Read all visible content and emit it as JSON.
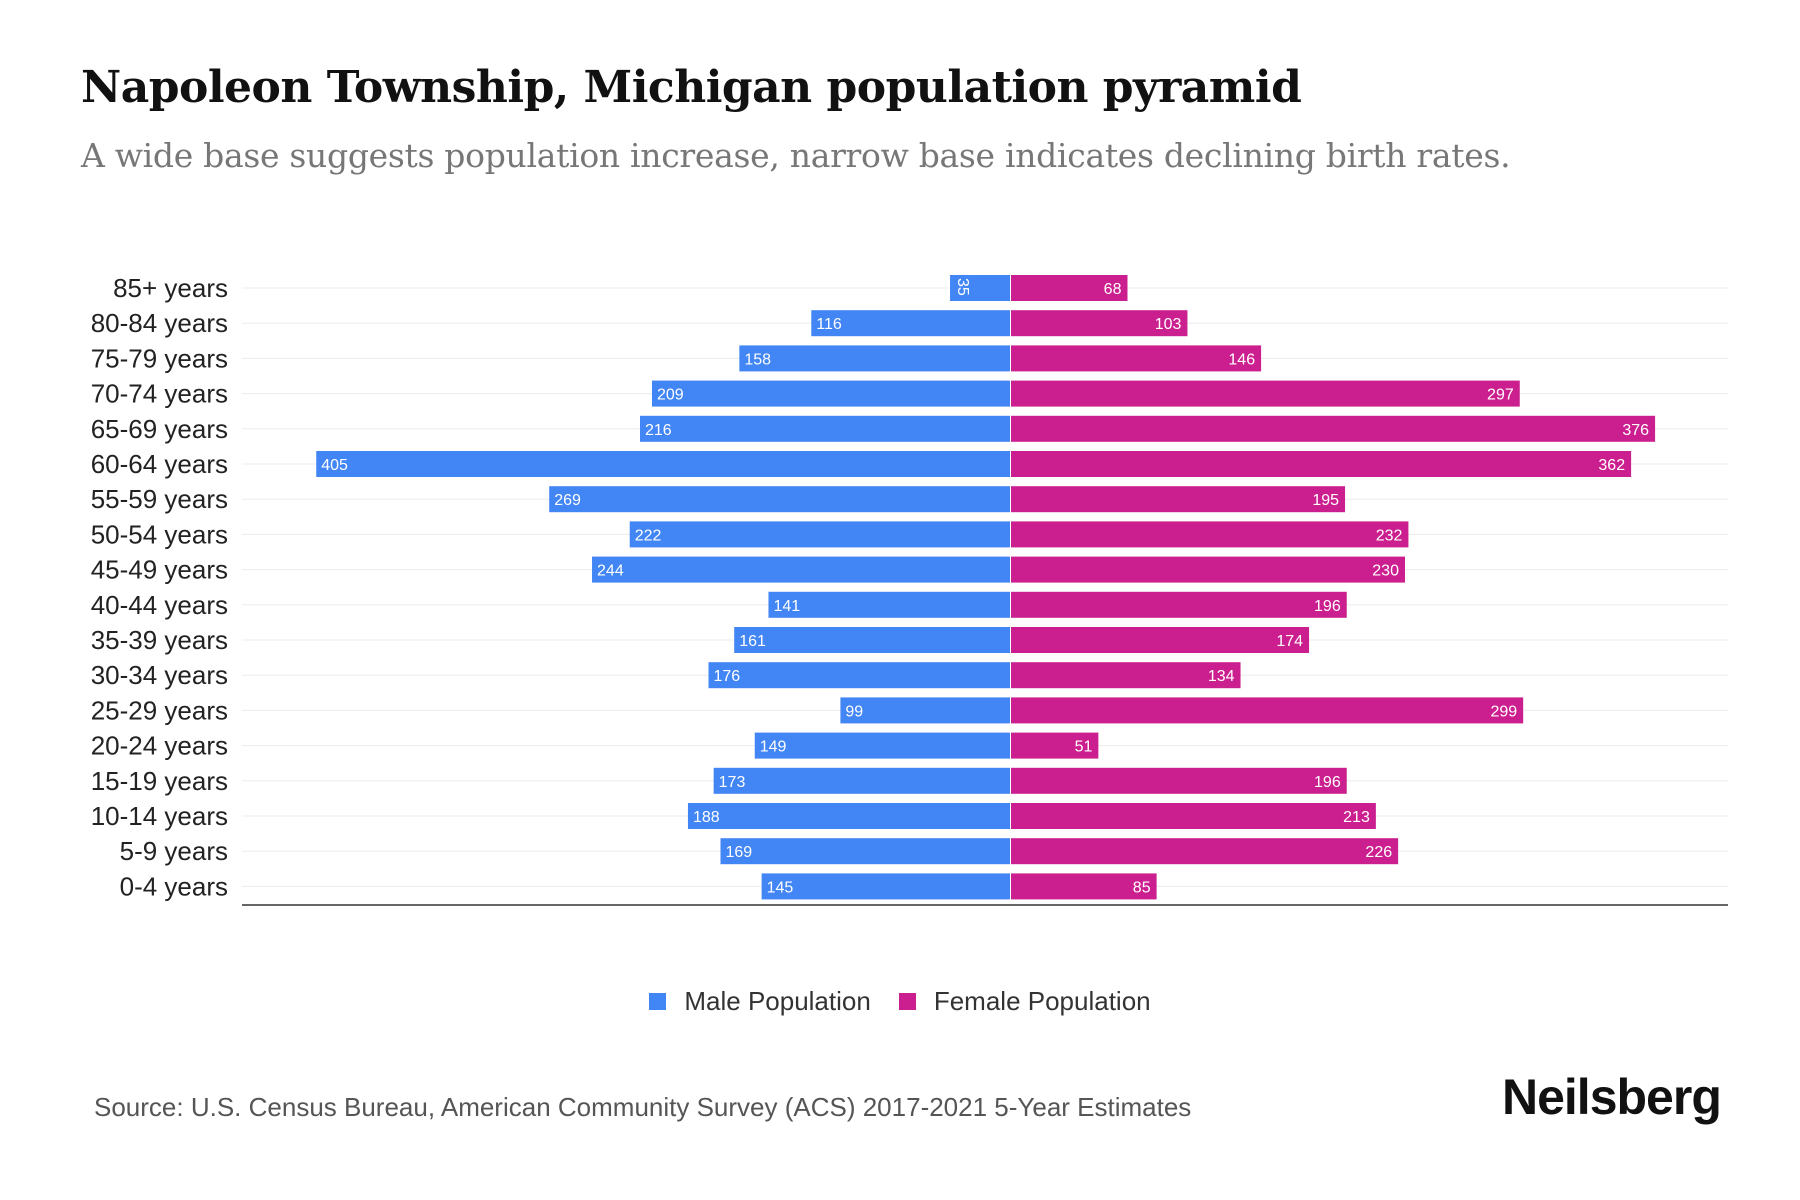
{
  "chart_data": {
    "type": "bar",
    "orientation": "horizontal-pyramid",
    "title": "Napoleon Township, Michigan population pyramid",
    "subtitle": "A wide base suggests population increase, narrow base indicates declining birth rates.",
    "categories": [
      "85+ years",
      "80-84 years",
      "75-79 years",
      "70-74 years",
      "65-69 years",
      "60-64 years",
      "55-59 years",
      "50-54 years",
      "45-49 years",
      "40-44 years",
      "35-39 years",
      "30-34 years",
      "25-29 years",
      "20-24 years",
      "15-19 years",
      "10-14 years",
      "5-9 years",
      "0-4 years"
    ],
    "series": [
      {
        "name": "Male Population",
        "color": "#4285f4",
        "values": [
          35,
          116,
          158,
          209,
          216,
          405,
          269,
          222,
          244,
          141,
          161,
          176,
          99,
          149,
          173,
          188,
          169,
          145
        ]
      },
      {
        "name": "Female Population",
        "color": "#cc1f8f",
        "values": [
          68,
          103,
          146,
          297,
          376,
          362,
          195,
          232,
          230,
          196,
          174,
          134,
          299,
          51,
          196,
          213,
          226,
          85
        ]
      }
    ],
    "legend_position": "bottom",
    "grid": true
  },
  "source": "Source: U.S. Census Bureau, American Community Survey (ACS) 2017-2021 5-Year Estimates",
  "logo": "Neilsberg"
}
